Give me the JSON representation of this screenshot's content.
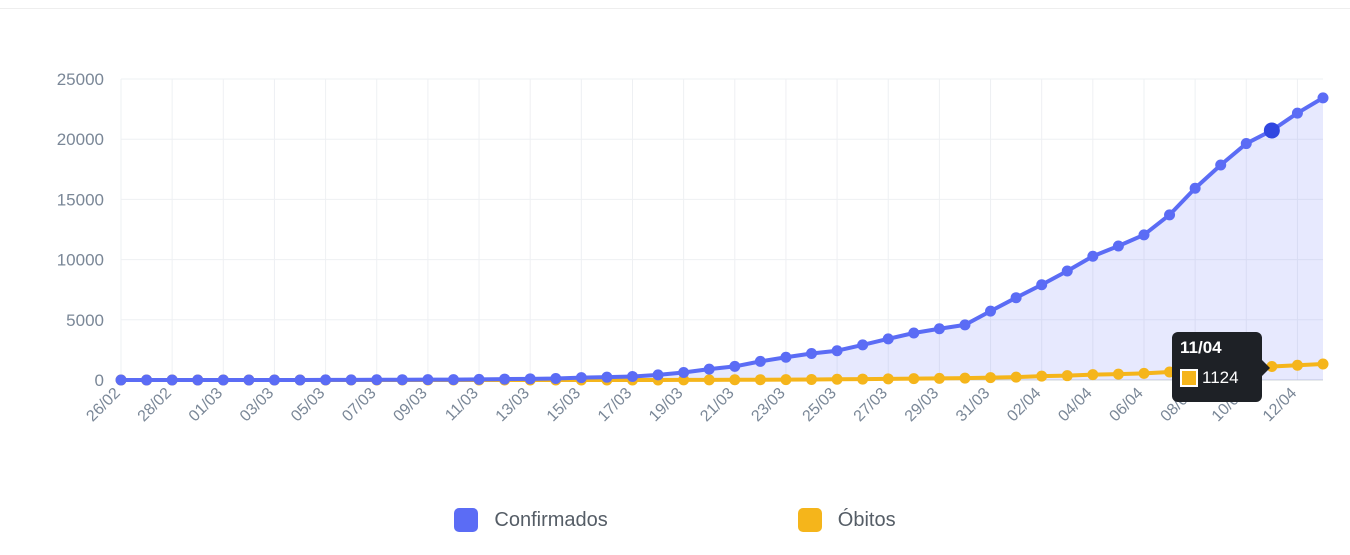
{
  "chart_data": {
    "type": "line",
    "x": [
      "26/02",
      "27/02",
      "28/02",
      "29/02",
      "01/03",
      "02/03",
      "03/03",
      "04/03",
      "05/03",
      "06/03",
      "07/03",
      "08/03",
      "09/03",
      "10/03",
      "11/03",
      "12/03",
      "13/03",
      "14/03",
      "15/03",
      "16/03",
      "17/03",
      "18/03",
      "19/03",
      "20/03",
      "21/03",
      "22/03",
      "23/03",
      "24/03",
      "25/03",
      "26/03",
      "27/03",
      "28/03",
      "29/03",
      "30/03",
      "31/03",
      "01/04",
      "02/04",
      "03/04",
      "04/04",
      "05/04",
      "06/04",
      "07/04",
      "08/04",
      "09/04",
      "10/04",
      "11/04",
      "12/04",
      "13/04"
    ],
    "tick_labels": [
      "26/02",
      "28/02",
      "01/03",
      "03/03",
      "05/03",
      "07/03",
      "09/03",
      "11/03",
      "13/03",
      "15/03",
      "17/03",
      "19/03",
      "21/03",
      "23/03",
      "25/03",
      "27/03",
      "29/03",
      "31/03",
      "02/04",
      "04/04",
      "06/04",
      "08/04",
      "10/04",
      "12/04"
    ],
    "series": [
      {
        "name": "Confirmados",
        "color": "#5b6cf5",
        "values": [
          1,
          1,
          1,
          2,
          2,
          2,
          2,
          3,
          8,
          13,
          19,
          25,
          30,
          34,
          52,
          77,
          98,
          121,
          200,
          234,
          291,
          428,
          621,
          904,
          1128,
          1546,
          1891,
          2201,
          2433,
          2915,
          3417,
          3904,
          4256,
          4579,
          5717,
          6836,
          7910,
          9056,
          10278,
          11130,
          12056,
          13717,
          15927,
          17857,
          19638,
          20727,
          22169,
          23430
        ]
      },
      {
        "name": "Óbitos",
        "color": "#f5b51b",
        "values": [
          0,
          0,
          0,
          0,
          0,
          0,
          0,
          0,
          0,
          0,
          0,
          0,
          0,
          0,
          0,
          0,
          0,
          0,
          0,
          0,
          1,
          4,
          7,
          11,
          18,
          25,
          34,
          46,
          59,
          77,
          92,
          111,
          136,
          159,
          201,
          240,
          324,
          359,
          445,
          486,
          553,
          667,
          800,
          941,
          1057,
          1124,
          1223,
          1328
        ]
      }
    ],
    "ylim": [
      0,
      25000
    ],
    "yticks": [
      0,
      5000,
      10000,
      15000,
      20000,
      25000
    ],
    "grid": true,
    "legend_position": "bottom-center",
    "tooltip": {
      "title": "11/04",
      "value": "1124",
      "color": "#f5b51b"
    }
  },
  "legend": [
    {
      "label": "Confirmados",
      "color": "#5b6cf5"
    },
    {
      "label": "Óbitos",
      "color": "#f5b51b"
    }
  ]
}
